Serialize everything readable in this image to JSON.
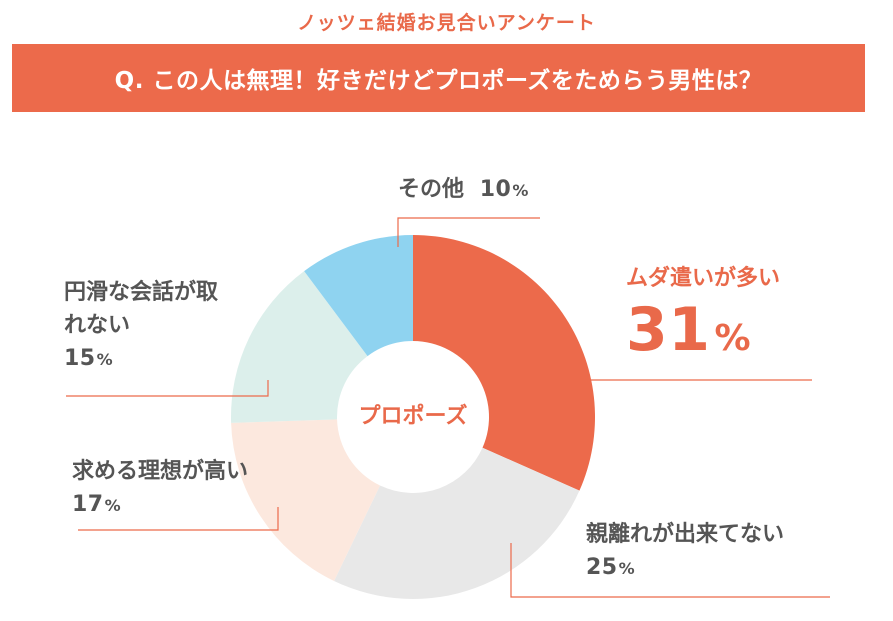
{
  "header": {
    "title": "ノッツェ結婚お見合いアンケート",
    "question": "Q. この人は無理！好きだけどプロポーズをためらう男性は？"
  },
  "colors": {
    "accent": "#ec6a4b",
    "header_text": "#e9694a",
    "label_text": "#555555"
  },
  "chart_data": {
    "type": "pie",
    "style": "donut",
    "center_label": "プロポーズ",
    "unit": "%",
    "slices": [
      {
        "label": "ムダ遣いが多い",
        "value": 31,
        "color": "#ec6a4b",
        "highlight": true
      },
      {
        "label": "親離れが出来てない",
        "value": 25,
        "color": "#e8e8e8"
      },
      {
        "label": "求める理想が高い",
        "value": 17,
        "color": "#fce8de"
      },
      {
        "label": "円滑な会話が取れない",
        "value": 15,
        "color": "#dcefeb"
      },
      {
        "label": "その他",
        "value": 10,
        "color": "#8fd3f0"
      }
    ]
  }
}
